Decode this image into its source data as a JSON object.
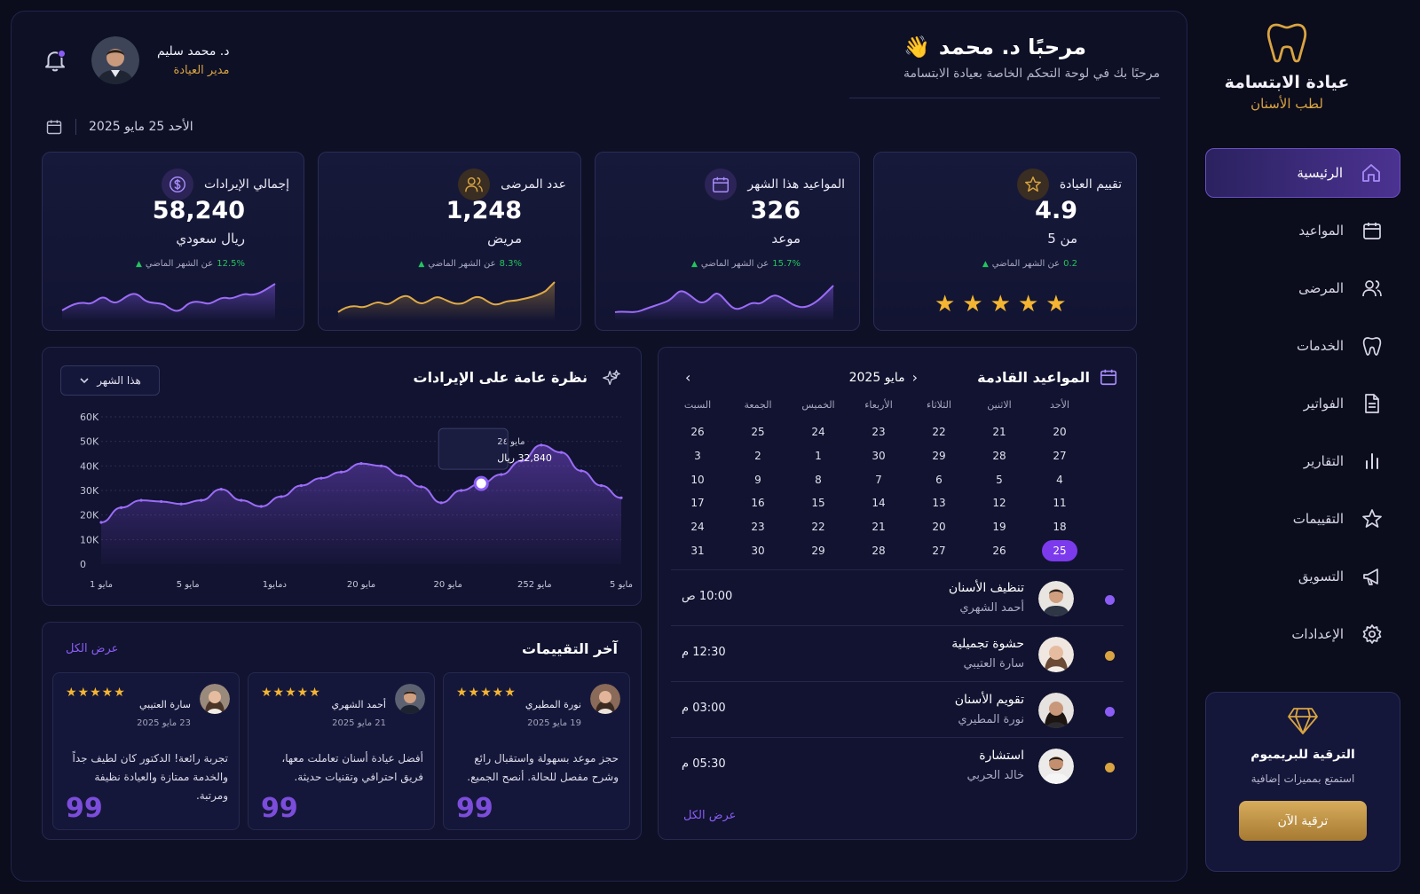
{
  "brand": {
    "name": "عيادة الابتسامة",
    "subtitle": "لطب الأسنان",
    "accent": "#d9a441"
  },
  "nav": {
    "items": [
      {
        "label": "الرئيسية",
        "icon": "home-icon",
        "active": true
      },
      {
        "label": "المواعيد",
        "icon": "calendar-icon"
      },
      {
        "label": "المرضى",
        "icon": "users-icon"
      },
      {
        "label": "الخدمات",
        "icon": "tooth-icon"
      },
      {
        "label": "الفواتير",
        "icon": "invoice-icon"
      },
      {
        "label": "التقارير",
        "icon": "bar-chart-icon"
      },
      {
        "label": "التقييمات",
        "icon": "star-icon"
      },
      {
        "label": "التسويق",
        "icon": "megaphone-icon"
      },
      {
        "label": "الإعدادات",
        "icon": "gear-icon"
      }
    ]
  },
  "upgrade": {
    "title": "الترقية للبريميوم",
    "desc": "استمتع بمميزات إضافية",
    "button": "ترقية الآن"
  },
  "header": {
    "greeting": "مرحبًا د. محمد",
    "wave": "👋",
    "subtitle": "مرحبًا بك في لوحة التحكم الخاصة بعيادة الابتسامة",
    "user_name": "د. محمد سليم",
    "user_role": "مدير العيادة",
    "date": "الأحد 25 مايو 2025"
  },
  "stats": [
    {
      "label": "إجمالي الإيرادات",
      "value": "58,240",
      "unit": "ريال سعودي",
      "pct": "12.5%",
      "trend_text": "عن الشهر الماضي",
      "color": "#8b5cf6",
      "icon": "dollar-icon"
    },
    {
      "label": "عدد المرضى",
      "value": "1,248",
      "unit": "مريض",
      "pct": "8.3%",
      "trend_text": "عن الشهر الماضي",
      "color": "#d9a441",
      "icon": "users-icon"
    },
    {
      "label": "المواعيد هذا الشهر",
      "value": "326",
      "unit": "موعد",
      "pct": "15.7%",
      "trend_text": "عن الشهر الماضي",
      "color": "#8b5cf6",
      "icon": "calendar-icon"
    },
    {
      "label": "تقييم العيادة",
      "value": "4.9",
      "unit": "من 5",
      "pct": "0.2",
      "trend_text": "عن الشهر الماضي",
      "color": "#d9a441",
      "icon": "star-icon",
      "stars": 5
    }
  ],
  "revenue": {
    "title": "نظرة عامة على الإيرادات",
    "period": "هذا الشهر",
    "tooltip_date": "مايو 2٤",
    "tooltip_value": "32,840 ريال"
  },
  "chart_data": {
    "type": "area",
    "title": "نظرة عامة على الإيرادات",
    "x_tick_labels": [
      "مايو 1",
      "مايو 5",
      "دمايو1",
      "مايو 20",
      "مايو 20",
      "مايو 252",
      "مايو 5"
    ],
    "y_tick_labels": [
      "0",
      "10K",
      "20K",
      "30K",
      "40K",
      "50K",
      "60K"
    ],
    "ylim": [
      0,
      60000
    ],
    "grid": true,
    "series": [
      {
        "values": [
          17000,
          23000,
          26000,
          25500,
          24500,
          26000,
          30500,
          26000,
          23500,
          27500,
          32000,
          35000,
          37500,
          41000,
          40000,
          36000,
          31500,
          25000,
          30000,
          32840,
          36500,
          42000,
          48500,
          45500,
          38000,
          32000,
          27000
        ]
      }
    ],
    "highlight": {
      "index": 19,
      "value": 32840
    }
  },
  "reviews": {
    "title": "آخر التقييمات",
    "view_all": "عرض الكل",
    "items": [
      {
        "name": "نورة المطيري",
        "date": "19 مايو 2025",
        "stars": "★★★★★",
        "text": "حجز موعد بسهولة واستقبال رائع وشرح مفصل للحالة. أنصح الجميع.",
        "quote": "99"
      },
      {
        "name": "أحمد الشهري",
        "date": "21 مايو 2025",
        "stars": "★★★★★",
        "text": "أفضل عيادة أسنان تعاملت معها، فريق احترافي وتقنيات حديثة.",
        "quote": "99"
      },
      {
        "name": "سارة العتيبي",
        "date": "23 مايو 2025",
        "stars": "★★★★★",
        "text": "تجربة رائعة! الدكتور كان لطيف جداً والخدمة ممتازة والعيادة نظيفة ومرتبة.",
        "quote": "99"
      }
    ]
  },
  "appointments": {
    "title": "المواعيد القادمة",
    "month": "مايو",
    "year": "2025",
    "prev_arrow": "‹",
    "next_arrow": "›",
    "weekdays": [
      "الأحد",
      "الاثنين",
      "الثلاثاء",
      "الأربعاء",
      "الخميس",
      "الجمعة",
      "السبت"
    ],
    "weeks": [
      [
        "20",
        "21",
        "22",
        "23",
        "24",
        "25",
        "26"
      ],
      [
        "27",
        "28",
        "29",
        "30",
        "1",
        "2",
        "3"
      ],
      [
        "4",
        "5",
        "6",
        "7",
        "8",
        "9",
        "10"
      ],
      [
        "11",
        "12",
        "13",
        "14",
        "15",
        "16",
        "17"
      ],
      [
        "18",
        "19",
        "20",
        "21",
        "22",
        "23",
        "24"
      ],
      [
        "25",
        "26",
        "27",
        "28",
        "29",
        "30",
        "31"
      ]
    ],
    "selected_day": "25",
    "items": [
      {
        "title": "تنظيف الأسنان",
        "patient": "أحمد الشهري",
        "time": "10:00 ص",
        "color": "#8b5cf6"
      },
      {
        "title": "حشوة تجميلية",
        "patient": "سارة العتيبي",
        "time": "12:30 م",
        "color": "#d9a441"
      },
      {
        "title": "تقويم الأسنان",
        "patient": "نورة المطيري",
        "time": "03:00 م",
        "color": "#8b5cf6"
      },
      {
        "title": "استشارة",
        "patient": "خالد الحربي",
        "time": "05:30 م",
        "color": "#d9a441"
      }
    ],
    "view_all": "عرض الكل"
  }
}
